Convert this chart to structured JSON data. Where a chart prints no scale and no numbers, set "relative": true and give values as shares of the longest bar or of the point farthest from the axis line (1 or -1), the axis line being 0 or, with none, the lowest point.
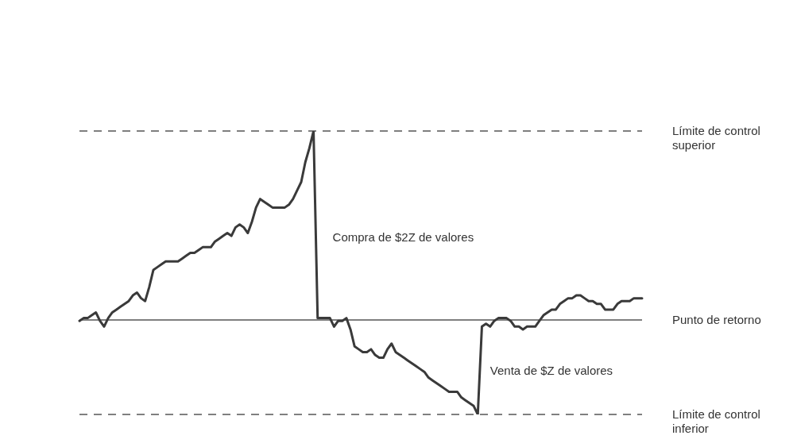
{
  "chart_data": {
    "type": "line",
    "relative": true,
    "categories": [
      null,
      null,
      null,
      null,
      null,
      null,
      null,
      null,
      null,
      null,
      null,
      null,
      null,
      null,
      null,
      null,
      null,
      null,
      null,
      null,
      null,
      null,
      null,
      null,
      null,
      null,
      null,
      null,
      null,
      null,
      null,
      null,
      null,
      null,
      null,
      null,
      null,
      null,
      null,
      null,
      null,
      null,
      null,
      null,
      null,
      null,
      null,
      null,
      null,
      null,
      null,
      null,
      null,
      null,
      null,
      null,
      null,
      null,
      null,
      null,
      null,
      null,
      null,
      null,
      null,
      null,
      null,
      null,
      null,
      null,
      null,
      null,
      null,
      null,
      null,
      null,
      null,
      null,
      null,
      null,
      null,
      null,
      null,
      null,
      null,
      null,
      null,
      null,
      null,
      null,
      null,
      null,
      null,
      null,
      null,
      null,
      null,
      null,
      null,
      null,
      null,
      null,
      null,
      null,
      null,
      null,
      null,
      null,
      null,
      null,
      null,
      null,
      null,
      null,
      null,
      null,
      null,
      null,
      null,
      null,
      null,
      null,
      null,
      null,
      null,
      null,
      null,
      null,
      null,
      null,
      null,
      null,
      null,
      null,
      null,
      null,
      null,
      null
    ],
    "series": [
      {
        "color": "#3a3a3a",
        "values": [
          0.33,
          0.34,
          0.34,
          0.35,
          0.36,
          0.33,
          0.31,
          0.34,
          0.36,
          0.37,
          0.38,
          0.39,
          0.4,
          0.42,
          0.43,
          0.41,
          0.4,
          0.45,
          0.51,
          0.52,
          0.53,
          0.54,
          0.54,
          0.54,
          0.54,
          0.55,
          0.56,
          0.57,
          0.57,
          0.58,
          0.59,
          0.59,
          0.59,
          0.61,
          0.62,
          0.63,
          0.64,
          0.63,
          0.66,
          0.67,
          0.66,
          0.64,
          0.68,
          0.73,
          0.76,
          0.75,
          0.74,
          0.73,
          0.73,
          0.73,
          0.73,
          0.74,
          0.76,
          0.79,
          0.82,
          0.89,
          0.94,
          1,
          0.34,
          0.34,
          0.34,
          0.34,
          0.31,
          0.33,
          0.33,
          0.34,
          0.3,
          0.24,
          0.23,
          0.22,
          0.22,
          0.23,
          0.21,
          0.2,
          0.2,
          0.23,
          0.25,
          0.22,
          0.21,
          0.2,
          0.19,
          0.18,
          0.17,
          0.16,
          0.15,
          0.13,
          0.12,
          0.11,
          0.1,
          0.09,
          0.08,
          0.08,
          0.08,
          0.06,
          0.05,
          0.04,
          0.03,
          0,
          0.31,
          0.32,
          0.31,
          0.33,
          0.34,
          0.34,
          0.34,
          0.33,
          0.31,
          0.31,
          0.3,
          0.31,
          0.31,
          0.31,
          0.33,
          0.35,
          0.36,
          0.37,
          0.37,
          0.39,
          0.4,
          0.41,
          0.41,
          0.42,
          0.42,
          0.41,
          0.4,
          0.4,
          0.39,
          0.39,
          0.37,
          0.37,
          0.37,
          0.39,
          0.4,
          0.4,
          0.4,
          0.41,
          0.41,
          0.41
        ]
      }
    ],
    "ref_lines": [
      {
        "axis": "y",
        "value": 1,
        "label": "Límite de control superior",
        "line_style": "dashed",
        "color": "#555555"
      },
      {
        "axis": "y",
        "value": 0.333,
        "label": "Punto de retorno",
        "line_style": "solid",
        "color": "#555555"
      },
      {
        "axis": "y",
        "value": 0,
        "label": "Límite de control inferior",
        "line_style": "dashed",
        "color": "#555555"
      }
    ],
    "annotations": [
      "Compra de $2Z de valores",
      "Venta de $Z de valores"
    ]
  }
}
